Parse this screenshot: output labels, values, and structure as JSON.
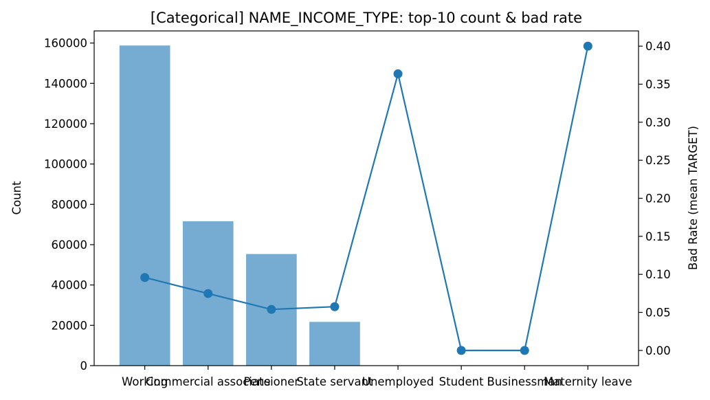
{
  "chart_data": {
    "type": "bar+line",
    "title": "[Categorical] NAME_INCOME_TYPE: top-10 count & bad rate",
    "ylabel_left": "Count",
    "ylabel_right": "Bad Rate (mean TARGET)",
    "categories": [
      "Working",
      "Commercial associate",
      "Pensioner",
      "State servant",
      "Unemployed",
      "Student",
      "Businessman",
      "Maternity leave"
    ],
    "counts": [
      158774,
      71617,
      55362,
      21703,
      22,
      18,
      10,
      5
    ],
    "bad_rate": [
      0.0959,
      0.0748,
      0.0539,
      0.0575,
      0.3636,
      0.0,
      0.0,
      0.4
    ],
    "ylim_left": [
      0,
      166000
    ],
    "ylim_right": [
      -0.02,
      0.42
    ],
    "yticks_left": [
      0,
      20000,
      40000,
      60000,
      80000,
      100000,
      120000,
      140000,
      160000
    ],
    "yticks_right": [
      0.0,
      0.05,
      0.1,
      0.15,
      0.2,
      0.25,
      0.3,
      0.35,
      0.4
    ],
    "colors": {
      "bar": "#77acd2",
      "line": "#1f77b4"
    },
    "grid": false
  }
}
